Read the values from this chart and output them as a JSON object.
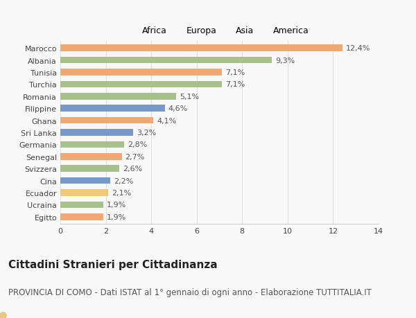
{
  "categories": [
    "Egitto",
    "Ucraina",
    "Ecuador",
    "Cina",
    "Svizzera",
    "Senegal",
    "Germania",
    "Sri Lanka",
    "Ghana",
    "Filippine",
    "Romania",
    "Turchia",
    "Tunisia",
    "Albania",
    "Marocco"
  ],
  "values": [
    1.9,
    1.9,
    2.1,
    2.2,
    2.6,
    2.7,
    2.8,
    3.2,
    4.1,
    4.6,
    5.1,
    7.1,
    7.1,
    9.3,
    12.4
  ],
  "labels": [
    "1,9%",
    "1,9%",
    "2,1%",
    "2,2%",
    "2,6%",
    "2,7%",
    "2,8%",
    "3,2%",
    "4,1%",
    "4,6%",
    "5,1%",
    "7,1%",
    "7,1%",
    "9,3%",
    "12,4%"
  ],
  "colors": [
    "#f0a875",
    "#a8c08a",
    "#f0c878",
    "#7898c8",
    "#a8c08a",
    "#f0a875",
    "#a8c08a",
    "#7898c8",
    "#f0a875",
    "#7898c8",
    "#a8c08a",
    "#a8c08a",
    "#f0a875",
    "#a8c08a",
    "#f0a875"
  ],
  "legend": {
    "Africa": "#f0a875",
    "Europa": "#a8c08a",
    "Asia": "#7898c8",
    "America": "#f0c878"
  },
  "xlim": [
    0,
    14
  ],
  "xticks": [
    0,
    2,
    4,
    6,
    8,
    10,
    12,
    14
  ],
  "title": "Cittadini Stranieri per Cittadinanza",
  "subtitle": "PROVINCIA DI COMO - Dati ISTAT al 1° gennaio di ogni anno - Elaborazione TUTTITALIA.IT",
  "background_color": "#f9f9f9",
  "bar_height": 0.55,
  "title_fontsize": 11,
  "subtitle_fontsize": 8.5,
  "label_fontsize": 8,
  "tick_fontsize": 8,
  "legend_fontsize": 9
}
